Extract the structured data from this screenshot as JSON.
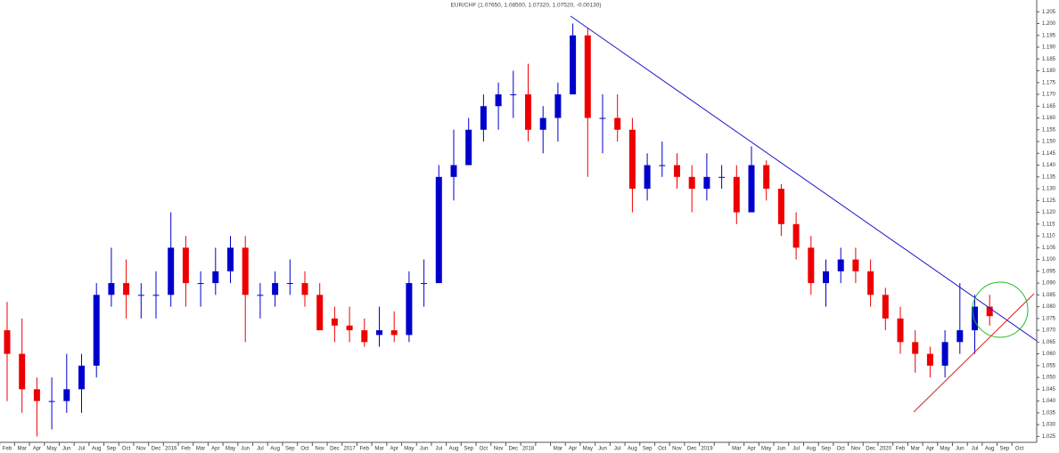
{
  "chart_data": {
    "type": "candlestick",
    "title": "EUR/CHF (1.07650, 1.08500, 1.07320, 1.07520, -0.00130)",
    "categories": [
      "Feb",
      "Mar",
      "Apr",
      "May",
      "Jun",
      "Jul",
      "Aug",
      "Sep",
      "Oct",
      "Nov",
      "Dec",
      "2016",
      "Feb",
      "Mar",
      "Apr",
      "May",
      "Jun",
      "Jul",
      "Aug",
      "Sep",
      "Oct",
      "Nov",
      "Dec",
      "2017",
      "Feb",
      "Mar",
      "Apr",
      "May",
      "Jun",
      "Jul",
      "Aug",
      "Sep",
      "Oct",
      "Nov",
      "Dec",
      "2018",
      null,
      "Mar",
      "Apr",
      "May",
      "Jun",
      "Jul",
      "Aug",
      "Sep",
      "Oct",
      "Nov",
      "Dec",
      "2019",
      null,
      "Mar",
      "Apr",
      "May",
      "Jun",
      "Jul",
      "Aug",
      "Sep",
      "Oct",
      "Nov",
      "Dec",
      "2020",
      "Feb",
      "Mar",
      "Apr",
      "May",
      "Jun",
      "Jul",
      "Aug",
      "Sep",
      "Oct"
    ],
    "open": [
      1.07,
      1.06,
      1.045,
      1.04,
      1.04,
      1.045,
      1.055,
      1.085,
      1.09,
      1.085,
      1.085,
      1.085,
      1.105,
      1.09,
      1.09,
      1.095,
      1.105,
      1.085,
      1.085,
      1.09,
      1.09,
      1.085,
      1.075,
      1.072,
      1.07,
      1.068,
      1.07,
      1.068,
      1.09,
      1.09,
      1.135,
      1.14,
      1.155,
      1.165,
      1.17,
      1.17,
      1.155,
      1.16,
      1.17,
      1.195,
      1.16,
      1.16,
      1.155,
      1.13,
      1.14,
      1.14,
      1.135,
      1.13,
      1.135,
      1.135,
      1.12,
      1.14,
      1.13,
      1.115,
      1.105,
      1.09,
      1.095,
      1.1,
      1.095,
      1.085,
      1.075,
      1.065,
      1.06,
      1.055,
      1.065,
      1.07,
      1.08,
      null,
      null
    ],
    "high": [
      1.082,
      1.075,
      1.05,
      1.05,
      1.06,
      1.06,
      1.09,
      1.105,
      1.1,
      1.09,
      1.095,
      1.12,
      1.11,
      1.095,
      1.105,
      1.11,
      1.11,
      1.09,
      1.095,
      1.1,
      1.095,
      1.09,
      1.08,
      1.08,
      1.075,
      1.08,
      1.078,
      1.095,
      1.1,
      1.14,
      1.155,
      1.16,
      1.17,
      1.175,
      1.18,
      1.183,
      1.165,
      1.175,
      1.2,
      1.198,
      1.17,
      1.17,
      1.16,
      1.145,
      1.15,
      1.145,
      1.14,
      1.145,
      1.14,
      1.14,
      1.148,
      1.142,
      1.132,
      1.12,
      1.11,
      1.1,
      1.105,
      1.105,
      1.1,
      1.088,
      1.08,
      1.07,
      1.063,
      1.07,
      1.09,
      1.085,
      1.085,
      null,
      null
    ],
    "low": [
      1.04,
      1.035,
      1.025,
      1.028,
      1.035,
      1.035,
      1.05,
      1.08,
      1.075,
      1.075,
      1.075,
      1.08,
      1.08,
      1.08,
      1.085,
      1.09,
      1.065,
      1.075,
      1.08,
      1.085,
      1.08,
      1.07,
      1.065,
      1.065,
      1.063,
      1.063,
      1.065,
      1.065,
      1.08,
      1.09,
      1.125,
      1.14,
      1.15,
      1.155,
      1.16,
      1.15,
      1.145,
      1.15,
      1.17,
      1.135,
      1.145,
      1.15,
      1.12,
      1.125,
      1.135,
      1.13,
      1.12,
      1.125,
      1.13,
      1.115,
      1.12,
      1.125,
      1.11,
      1.1,
      1.085,
      1.08,
      1.09,
      1.09,
      1.08,
      1.07,
      1.06,
      1.052,
      1.05,
      1.05,
      1.06,
      1.06,
      1.072,
      null,
      null
    ],
    "close": [
      1.06,
      1.045,
      1.04,
      1.04,
      1.045,
      1.055,
      1.085,
      1.09,
      1.085,
      1.085,
      1.085,
      1.105,
      1.09,
      1.09,
      1.095,
      1.105,
      1.085,
      1.085,
      1.09,
      1.09,
      1.085,
      1.07,
      1.072,
      1.07,
      1.065,
      1.07,
      1.068,
      1.09,
      1.09,
      1.135,
      1.14,
      1.155,
      1.165,
      1.17,
      1.17,
      1.155,
      1.16,
      1.17,
      1.195,
      1.16,
      1.16,
      1.155,
      1.13,
      1.14,
      1.14,
      1.135,
      1.13,
      1.135,
      1.135,
      1.12,
      1.14,
      1.13,
      1.115,
      1.105,
      1.09,
      1.095,
      1.1,
      1.095,
      1.085,
      1.075,
      1.065,
      1.06,
      1.055,
      1.065,
      1.07,
      1.08,
      1.076,
      null,
      null
    ],
    "up_color": "#0000cc",
    "down_color": "#ee0000",
    "ylim": [
      1.0225,
      1.21
    ],
    "yticks": [
      1.025,
      {
        "value": 1.03,
        "label": "1.030"
      },
      1.035,
      {
        "value": 1.04,
        "label": "1.040"
      },
      1.045,
      {
        "value": 1.05,
        "label": "1.050"
      },
      1.055,
      {
        "value": 1.06,
        "label": "1.060"
      },
      1.065,
      {
        "value": 1.07,
        "label": "1.070"
      },
      1.075,
      {
        "value": 1.08,
        "label": "1.080"
      },
      1.085,
      {
        "value": 1.09,
        "label": "1.090"
      },
      1.095,
      {
        "value": 1.1,
        "label": "1.100"
      },
      1.105,
      {
        "value": 1.11,
        "label": "1.110"
      },
      1.115,
      {
        "value": 1.12,
        "label": "1.120"
      },
      1.125,
      {
        "value": 1.13,
        "label": "1.130"
      },
      1.135,
      {
        "value": 1.14,
        "label": "1.140"
      },
      1.145,
      {
        "value": 1.15,
        "label": "1.150"
      },
      1.155,
      {
        "value": 1.16,
        "label": "1.160"
      },
      1.165,
      {
        "value": 1.17,
        "label": "1.170"
      },
      1.175,
      {
        "value": 1.18,
        "label": "1.180"
      },
      1.185,
      {
        "value": 1.19,
        "label": "1.190"
      },
      1.195,
      {
        "value": 1.2,
        "label": "1.200"
      },
      1.205
    ]
  }
}
